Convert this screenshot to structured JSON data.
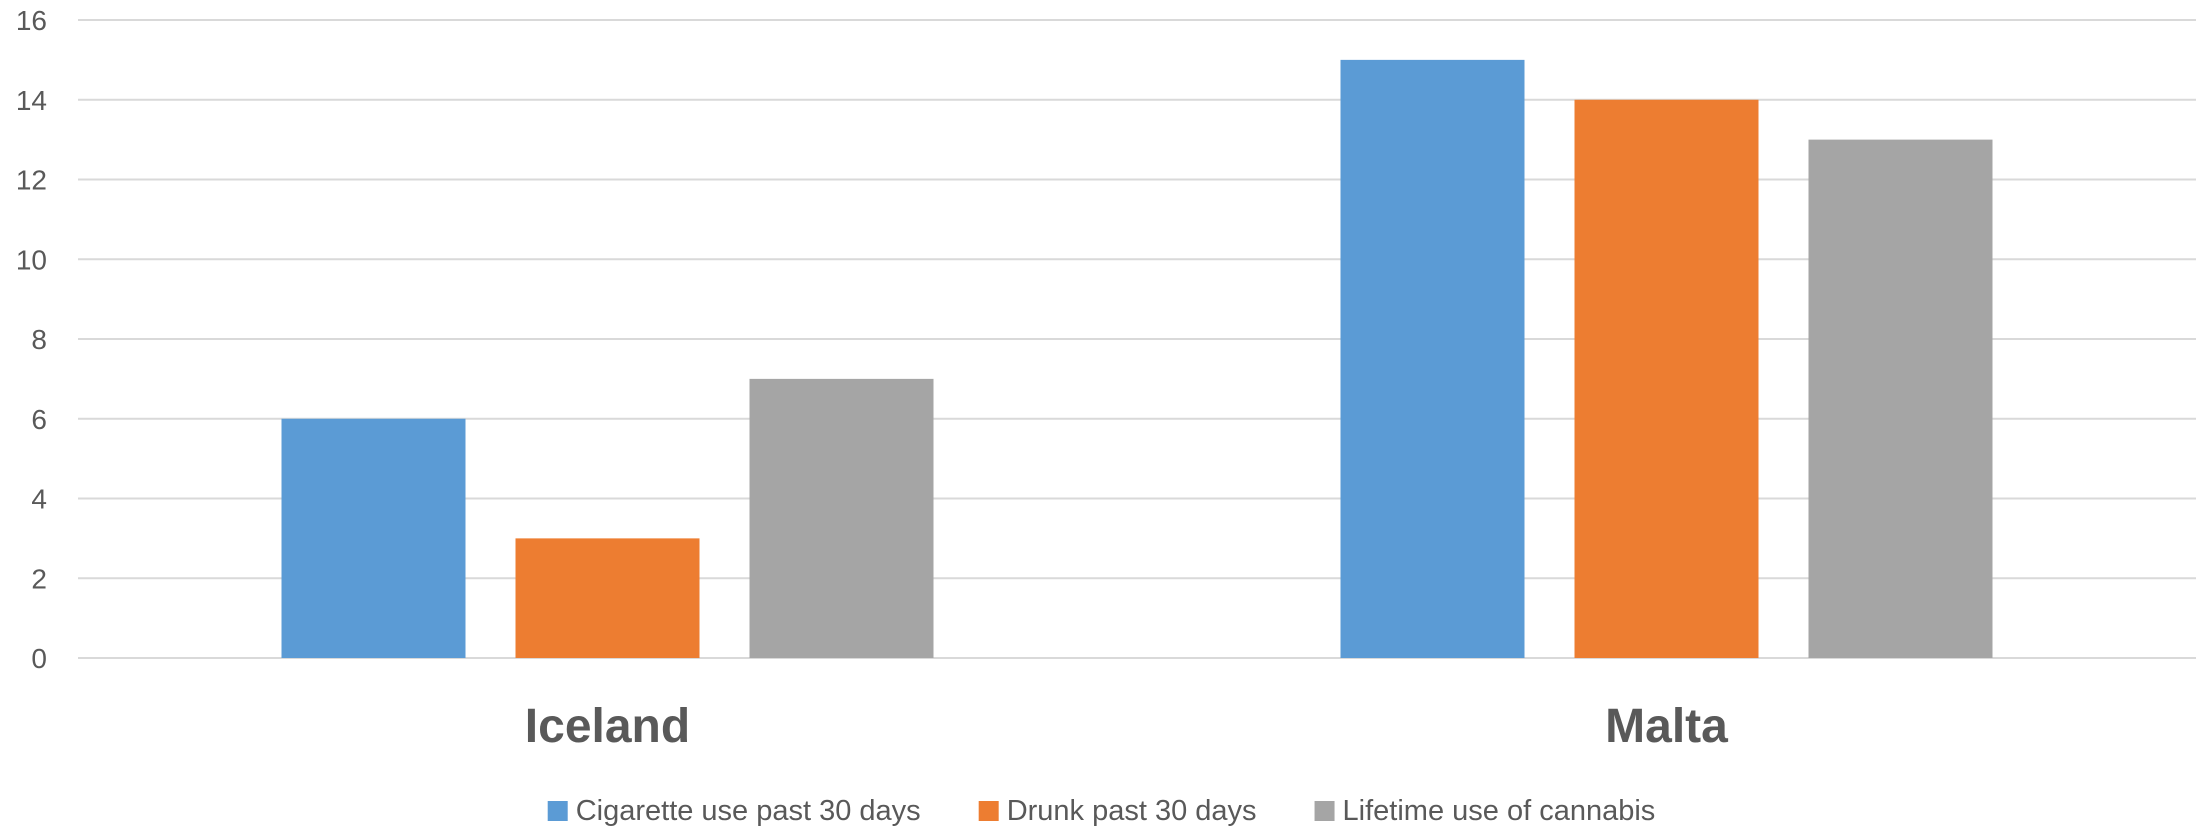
{
  "chart_data": {
    "type": "bar",
    "categories": [
      "Iceland",
      "Malta"
    ],
    "series": [
      {
        "name": "Cigarette use past 30 days",
        "values": [
          6,
          15
        ],
        "color": "#5b9bd5"
      },
      {
        "name": "Drunk past 30 days",
        "values": [
          3,
          14
        ],
        "color": "#ed7d31"
      },
      {
        "name": "Lifetime use of cannabis",
        "values": [
          7,
          13
        ],
        "color": "#a5a5a5"
      }
    ],
    "ylim": [
      0,
      16
    ],
    "yticks": [
      0,
      2,
      4,
      6,
      8,
      10,
      12,
      14,
      16
    ],
    "title": "",
    "xlabel": "",
    "ylabel": "",
    "grid": true,
    "legend_position": "bottom"
  }
}
